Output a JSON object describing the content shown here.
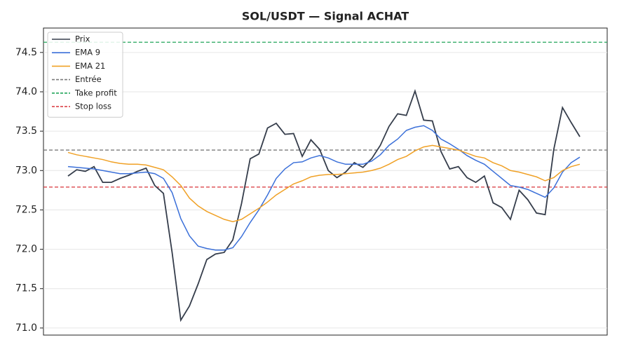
{
  "chart_data": {
    "type": "line",
    "title": "SOL/USDT — Signal ACHAT",
    "ylim": [
      70.91,
      74.81
    ],
    "yticks": [
      {
        "value": 71,
        "label": "71.0"
      },
      {
        "value": 71.5,
        "label": "71.5"
      },
      {
        "value": 72,
        "label": "72.0"
      },
      {
        "value": 72.5,
        "label": "72.5"
      },
      {
        "value": 73,
        "label": "73.0"
      },
      {
        "value": 73.5,
        "label": "73.5"
      },
      {
        "value": 74,
        "label": "74.0"
      },
      {
        "value": 74.5,
        "label": "74.5"
      }
    ],
    "grid": true,
    "legend": "upper left",
    "series": [
      {
        "name": "Prix",
        "color": "#353d4b",
        "values": [
          72.93,
          73.01,
          72.99,
          73.05,
          72.85,
          72.85,
          72.9,
          72.94,
          72.99,
          73.03,
          72.81,
          72.71,
          71.96,
          71.1,
          71.28,
          71.56,
          71.87,
          71.94,
          71.96,
          72.12,
          72.58,
          73.15,
          73.21,
          73.54,
          73.6,
          73.46,
          73.47,
          73.18,
          73.39,
          73.27,
          73.0,
          72.91,
          72.98,
          73.1,
          73.04,
          73.15,
          73.32,
          73.56,
          73.72,
          73.7,
          74.01,
          73.64,
          73.63,
          73.24,
          73.02,
          73.05,
          72.91,
          72.85,
          72.93,
          72.59,
          72.53,
          72.38,
          72.75,
          72.63,
          72.46,
          72.44,
          73.27,
          73.8,
          73.61,
          73.43
        ]
      },
      {
        "name": "EMA 9",
        "color": "#3b70d9",
        "values": [
          73.05,
          73.04,
          73.03,
          73.02,
          73.0,
          72.98,
          72.96,
          72.96,
          72.97,
          72.98,
          72.96,
          72.9,
          72.72,
          72.39,
          72.17,
          72.04,
          72.01,
          71.99,
          71.99,
          72.02,
          72.16,
          72.34,
          72.5,
          72.69,
          72.9,
          73.02,
          73.1,
          73.11,
          73.16,
          73.19,
          73.16,
          73.11,
          73.08,
          73.08,
          73.08,
          73.12,
          73.2,
          73.32,
          73.4,
          73.51,
          73.55,
          73.57,
          73.51,
          73.4,
          73.34,
          73.27,
          73.19,
          73.13,
          73.08,
          72.99,
          72.9,
          72.81,
          72.79,
          72.76,
          72.71,
          72.66,
          72.78,
          72.98,
          73.1,
          73.17
        ]
      },
      {
        "name": "EMA 21",
        "color": "#f0a126",
        "values": [
          73.23,
          73.2,
          73.18,
          73.16,
          73.14,
          73.11,
          73.09,
          73.08,
          73.08,
          73.07,
          73.04,
          73.01,
          72.92,
          72.81,
          72.65,
          72.55,
          72.48,
          72.43,
          72.38,
          72.35,
          72.38,
          72.45,
          72.52,
          72.6,
          72.69,
          72.76,
          72.83,
          72.87,
          72.92,
          72.94,
          72.95,
          72.95,
          72.96,
          72.97,
          72.98,
          73.0,
          73.03,
          73.08,
          73.14,
          73.18,
          73.25,
          73.3,
          73.32,
          73.3,
          73.28,
          73.26,
          73.22,
          73.18,
          73.16,
          73.1,
          73.06,
          73.0,
          72.98,
          72.95,
          72.92,
          72.87,
          72.91,
          73.0,
          73.05,
          73.08
        ]
      }
    ],
    "levels": [
      {
        "name": "Entrée",
        "color": "#7a7a7a",
        "value": 73.26
      },
      {
        "name": "Take profit",
        "color": "#22a55b",
        "value": 74.63
      },
      {
        "name": "Stop loss",
        "color": "#d9343a",
        "value": 72.79
      }
    ]
  }
}
